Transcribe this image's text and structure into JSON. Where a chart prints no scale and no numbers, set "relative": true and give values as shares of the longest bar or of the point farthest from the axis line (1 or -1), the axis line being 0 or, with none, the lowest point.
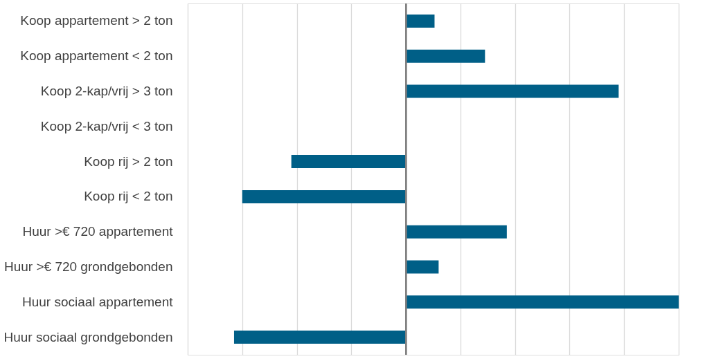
{
  "chart_data": {
    "type": "bar",
    "orientation": "horizontal",
    "relative": true,
    "grid": "x",
    "color": "#005f87",
    "categories": [
      "Koop appartement > 2 ton",
      "Koop appartement < 2 ton",
      "Koop 2-kap/vrij > 3 ton",
      "Koop 2-kap/vrij < 3 ton",
      "Koop rij > 2 ton",
      "Koop rij < 2 ton",
      "Huur >€ 720 appartement",
      "Huur >€ 720 grondgebonden",
      "Huur sociaal appartement",
      "Huur sociaal grondgebonden"
    ],
    "values": [
      0.105,
      0.29,
      0.78,
      0,
      -0.42,
      -0.6,
      0.37,
      0.12,
      1,
      -0.63
    ]
  }
}
